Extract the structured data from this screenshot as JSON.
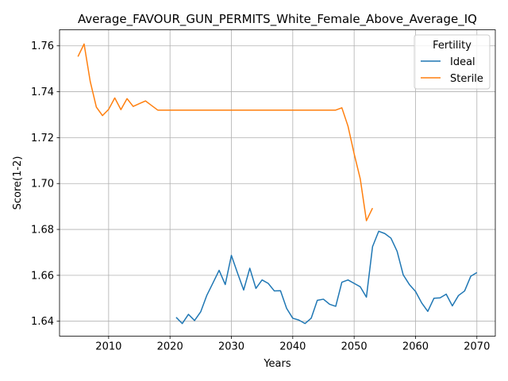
{
  "chart_data": {
    "type": "line",
    "title": "Average_FAVOUR_GUN_PERMITS_White_Female_Above_Average_IQ",
    "xlabel": "Years",
    "ylabel": "Score(1-2)",
    "xlim": [
      2002,
      2073
    ],
    "ylim": [
      1.6335,
      1.767
    ],
    "xticks": [
      2010,
      2020,
      2030,
      2040,
      2050,
      2060,
      2070
    ],
    "yticks": [
      1.64,
      1.66,
      1.68,
      1.7,
      1.72,
      1.74,
      1.76
    ],
    "ytick_labels": [
      "1.64",
      "1.66",
      "1.68",
      "1.70",
      "1.72",
      "1.74",
      "1.76"
    ],
    "grid": true,
    "legend": {
      "title": "Fertility",
      "position": "top-right"
    },
    "series": [
      {
        "name": "Ideal",
        "color": "#1f77b4",
        "x": [
          2021,
          2022,
          2023,
          2024,
          2025,
          2026,
          2027,
          2028,
          2029,
          2030,
          2031,
          2032,
          2033,
          2034,
          2035,
          2036,
          2037,
          2038,
          2039,
          2040,
          2041,
          2042,
          2043,
          2044,
          2045,
          2046,
          2047,
          2048,
          2049,
          2050,
          2051,
          2052,
          2053,
          2054,
          2055,
          2056,
          2057,
          2058,
          2059,
          2060,
          2061,
          2062,
          2063,
          2064,
          2065,
          2066,
          2067,
          2068,
          2069,
          2070
        ],
        "y": [
          1.6417,
          1.639,
          1.643,
          1.6403,
          1.6441,
          1.6513,
          1.6567,
          1.6622,
          1.656,
          1.6687,
          1.661,
          1.6536,
          1.6631,
          1.6543,
          1.658,
          1.6565,
          1.6532,
          1.6533,
          1.6456,
          1.6413,
          1.6405,
          1.639,
          1.6413,
          1.6491,
          1.6496,
          1.6474,
          1.6465,
          1.657,
          1.658,
          1.6565,
          1.655,
          1.6505,
          1.6725,
          1.6792,
          1.6782,
          1.6762,
          1.6705,
          1.6602,
          1.656,
          1.653,
          1.648,
          1.6443,
          1.65,
          1.6502,
          1.6518,
          1.6467,
          1.6512,
          1.6532,
          1.6596,
          1.6612
        ]
      },
      {
        "name": "Sterile",
        "color": "#ff7f0e",
        "x": [
          2005,
          2006,
          2007,
          2008,
          2009,
          2010,
          2011,
          2012,
          2013,
          2014,
          2015,
          2016,
          2017,
          2018,
          2019,
          2020,
          2021,
          2022,
          2023,
          2024,
          2025,
          2026,
          2027,
          2028,
          2029,
          2030,
          2031,
          2032,
          2033,
          2034,
          2035,
          2036,
          2037,
          2038,
          2039,
          2040,
          2041,
          2042,
          2043,
          2044,
          2045,
          2046,
          2047,
          2048,
          2049,
          2050,
          2051,
          2052,
          2053
        ],
        "y": [
          1.7553,
          1.7608,
          1.7445,
          1.7333,
          1.7296,
          1.7323,
          1.7373,
          1.7322,
          1.737,
          1.7336,
          1.7348,
          1.736,
          1.734,
          1.732,
          1.732,
          1.732,
          1.732,
          1.732,
          1.732,
          1.732,
          1.732,
          1.732,
          1.732,
          1.732,
          1.732,
          1.732,
          1.732,
          1.732,
          1.732,
          1.732,
          1.732,
          1.732,
          1.732,
          1.732,
          1.732,
          1.732,
          1.732,
          1.732,
          1.732,
          1.732,
          1.732,
          1.732,
          1.732,
          1.733,
          1.725,
          1.713,
          1.702,
          1.6838,
          1.6893
        ]
      }
    ]
  }
}
